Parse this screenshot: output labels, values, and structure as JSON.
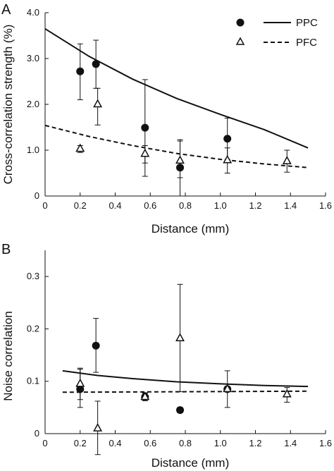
{
  "chart_data": [
    {
      "panel_label": "A",
      "type": "scatter",
      "xlabel": "Distance (mm)",
      "ylabel": "Cross-correlation strength (%)",
      "xlim": [
        0,
        1.6
      ],
      "ylim": [
        0,
        4.0
      ],
      "x_ticks": [
        "0",
        "0.2",
        "0.4",
        "0.6",
        "0.8",
        "1.0",
        "1.2",
        "1.4",
        "1.6"
      ],
      "y_ticks": [
        "0",
        "1.0",
        "2.0",
        "3.0",
        "4.0"
      ],
      "grid": false,
      "legend_position": "top-right",
      "series": [
        {
          "name": "PPC",
          "marker": "filled-circle",
          "line": "solid",
          "points": [
            {
              "x": 0.2,
              "y": 2.72,
              "lo": 2.1,
              "hi": 3.32
            },
            {
              "x": 0.29,
              "y": 2.88,
              "lo": 2.35,
              "hi": 3.4
            },
            {
              "x": 0.57,
              "y": 1.49,
              "lo": 0.43,
              "hi": 2.54
            },
            {
              "x": 0.77,
              "y": 0.62,
              "lo": 0.0,
              "hi": 1.23
            },
            {
              "x": 1.04,
              "y": 1.25,
              "lo": 0.8,
              "hi": 1.7
            }
          ],
          "fit": [
            {
              "x": 0.0,
              "y": 3.65
            },
            {
              "x": 0.25,
              "y": 3.05
            },
            {
              "x": 0.5,
              "y": 2.55
            },
            {
              "x": 0.75,
              "y": 2.13
            },
            {
              "x": 1.0,
              "y": 1.78
            },
            {
              "x": 1.25,
              "y": 1.45
            },
            {
              "x": 1.5,
              "y": 1.05
            }
          ]
        },
        {
          "name": "PFC",
          "marker": "open-triangle",
          "line": "dashed",
          "points": [
            {
              "x": 0.2,
              "y": 1.03,
              "lo": 0.95,
              "hi": 1.1
            },
            {
              "x": 0.3,
              "y": 2.0,
              "lo": 1.55,
              "hi": 2.35
            },
            {
              "x": 0.57,
              "y": 0.92,
              "lo": 0.72,
              "hi": 1.1
            },
            {
              "x": 0.77,
              "y": 0.77,
              "lo": 0.4,
              "hi": 1.2
            },
            {
              "x": 1.04,
              "y": 0.78,
              "lo": 0.5,
              "hi": 1.05
            },
            {
              "x": 1.38,
              "y": 0.76,
              "lo": 0.52,
              "hi": 1.0
            }
          ],
          "fit": [
            {
              "x": 0.0,
              "y": 1.54
            },
            {
              "x": 0.25,
              "y": 1.3
            },
            {
              "x": 0.5,
              "y": 1.1
            },
            {
              "x": 0.75,
              "y": 0.93
            },
            {
              "x": 1.0,
              "y": 0.8
            },
            {
              "x": 1.25,
              "y": 0.7
            },
            {
              "x": 1.5,
              "y": 0.62
            }
          ]
        }
      ]
    },
    {
      "panel_label": "B",
      "type": "scatter",
      "xlabel": "Distance (mm)",
      "ylabel": "Noise correlation",
      "xlim": [
        0,
        1.6
      ],
      "ylim": [
        0,
        0.35
      ],
      "x_ticks": [
        "0",
        "0.2",
        "0.4",
        "0.6",
        "0.8",
        "1.0",
        "1.2",
        "1.4",
        "1.6"
      ],
      "y_ticks": [
        "0",
        "0.1",
        "0.2",
        "0.3"
      ],
      "grid": false,
      "series": [
        {
          "name": "PPC",
          "marker": "filled-circle",
          "line": "solid",
          "points": [
            {
              "x": 0.2,
              "y": 0.085,
              "lo": 0.05,
              "hi": 0.123
            },
            {
              "x": 0.29,
              "y": 0.168,
              "lo": 0.117,
              "hi": 0.22
            },
            {
              "x": 0.57,
              "y": 0.07,
              "lo": 0.063,
              "hi": 0.078
            },
            {
              "x": 0.77,
              "y": 0.045,
              "lo": 0.04,
              "hi": 0.05
            },
            {
              "x": 1.04,
              "y": 0.085,
              "lo": 0.08,
              "hi": 0.09
            }
          ],
          "fit": [
            {
              "x": 0.1,
              "y": 0.12
            },
            {
              "x": 0.3,
              "y": 0.111
            },
            {
              "x": 0.5,
              "y": 0.105
            },
            {
              "x": 0.75,
              "y": 0.099
            },
            {
              "x": 1.0,
              "y": 0.095
            },
            {
              "x": 1.25,
              "y": 0.092
            },
            {
              "x": 1.5,
              "y": 0.09
            }
          ]
        },
        {
          "name": "PFC",
          "marker": "open-triangle",
          "line": "dashed",
          "points": [
            {
              "x": 0.2,
              "y": 0.095,
              "lo": 0.065,
              "hi": 0.125
            },
            {
              "x": 0.3,
              "y": 0.01,
              "lo": -0.04,
              "hi": 0.062
            },
            {
              "x": 0.57,
              "y": 0.07,
              "lo": 0.063,
              "hi": 0.077
            },
            {
              "x": 0.77,
              "y": 0.182,
              "lo": 0.08,
              "hi": 0.285
            },
            {
              "x": 1.04,
              "y": 0.085,
              "lo": 0.05,
              "hi": 0.12
            },
            {
              "x": 1.38,
              "y": 0.075,
              "lo": 0.06,
              "hi": 0.088
            }
          ],
          "fit": [
            {
              "x": 0.1,
              "y": 0.079
            },
            {
              "x": 1.5,
              "y": 0.081
            }
          ]
        }
      ]
    }
  ]
}
